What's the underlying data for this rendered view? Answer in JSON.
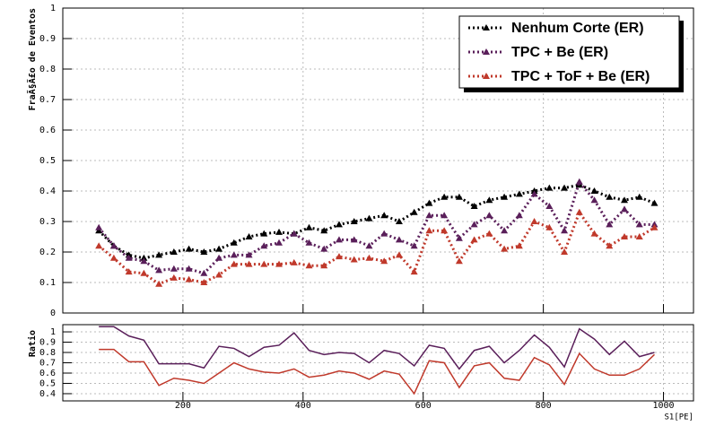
{
  "chart_data": [
    {
      "type": "line",
      "ylabel": "FraÃ§Ã£o de Eventos",
      "x": [
        60,
        85,
        110,
        135,
        160,
        185,
        210,
        235,
        260,
        285,
        310,
        335,
        360,
        385,
        410,
        435,
        460,
        485,
        510,
        535,
        560,
        585,
        610,
        635,
        660,
        685,
        710,
        735,
        760,
        785,
        810,
        835,
        860,
        885,
        910,
        935,
        960,
        985
      ],
      "series": [
        {
          "name": "Nenhum Corte (ER)",
          "color": "#000000",
          "values": [
            0.27,
            0.22,
            0.19,
            0.18,
            0.19,
            0.2,
            0.21,
            0.2,
            0.21,
            0.23,
            0.25,
            0.26,
            0.265,
            0.26,
            0.28,
            0.27,
            0.29,
            0.3,
            0.31,
            0.32,
            0.3,
            0.33,
            0.36,
            0.38,
            0.38,
            0.35,
            0.37,
            0.38,
            0.39,
            0.4,
            0.41,
            0.41,
            0.42,
            0.4,
            0.38,
            0.37,
            0.38,
            0.36
          ]
        },
        {
          "name": "TPC + Be (ER)",
          "color": "#5a1f5a",
          "values": [
            0.28,
            0.22,
            0.18,
            0.17,
            0.14,
            0.145,
            0.145,
            0.13,
            0.18,
            0.19,
            0.19,
            0.22,
            0.23,
            0.26,
            0.23,
            0.21,
            0.24,
            0.24,
            0.22,
            0.26,
            0.24,
            0.22,
            0.32,
            0.32,
            0.245,
            0.29,
            0.32,
            0.27,
            0.32,
            0.39,
            0.35,
            0.27,
            0.43,
            0.37,
            0.29,
            0.34,
            0.29,
            0.29
          ]
        },
        {
          "name": "TPC + ToF + Be (ER)",
          "color": "#c0392b",
          "values": [
            0.22,
            0.18,
            0.135,
            0.13,
            0.095,
            0.115,
            0.11,
            0.1,
            0.125,
            0.16,
            0.16,
            0.16,
            0.16,
            0.165,
            0.155,
            0.155,
            0.185,
            0.175,
            0.18,
            0.17,
            0.19,
            0.135,
            0.27,
            0.27,
            0.17,
            0.24,
            0.26,
            0.21,
            0.22,
            0.3,
            0.28,
            0.2,
            0.33,
            0.26,
            0.22,
            0.25,
            0.25,
            0.28
          ]
        }
      ],
      "xlim": [
        0,
        1050
      ],
      "ylim": [
        0,
        1
      ],
      "yticks": [
        0,
        0.1,
        0.2,
        0.3,
        0.4,
        0.5,
        0.6,
        0.7,
        0.8,
        0.9,
        1
      ],
      "grid": true
    },
    {
      "type": "line",
      "xlabel": "S1[PE]",
      "ylabel": "Ratio",
      "x": [
        60,
        85,
        110,
        135,
        160,
        185,
        210,
        235,
        260,
        285,
        310,
        335,
        360,
        385,
        410,
        435,
        460,
        485,
        510,
        535,
        560,
        585,
        610,
        635,
        660,
        685,
        710,
        735,
        760,
        785,
        810,
        835,
        860,
        885,
        910,
        935,
        960,
        985
      ],
      "series": [
        {
          "color": "#5a1f5a",
          "values": [
            1.05,
            1.05,
            0.96,
            0.92,
            0.69,
            0.69,
            0.69,
            0.65,
            0.86,
            0.84,
            0.76,
            0.85,
            0.87,
            0.99,
            0.82,
            0.78,
            0.8,
            0.79,
            0.7,
            0.82,
            0.79,
            0.67,
            0.87,
            0.84,
            0.64,
            0.82,
            0.86,
            0.7,
            0.82,
            0.97,
            0.85,
            0.66,
            1.03,
            0.93,
            0.78,
            0.91,
            0.76,
            0.8
          ]
        },
        {
          "color": "#c0392b",
          "values": [
            0.83,
            0.83,
            0.71,
            0.71,
            0.48,
            0.55,
            0.53,
            0.5,
            0.6,
            0.7,
            0.64,
            0.61,
            0.6,
            0.64,
            0.56,
            0.58,
            0.62,
            0.6,
            0.54,
            0.62,
            0.59,
            0.4,
            0.72,
            0.7,
            0.46,
            0.67,
            0.7,
            0.55,
            0.53,
            0.75,
            0.68,
            0.49,
            0.79,
            0.64,
            0.58,
            0.58,
            0.64,
            0.78
          ]
        }
      ],
      "xlim": [
        0,
        1050
      ],
      "ylim": [
        0.33,
        1.07
      ],
      "xticks": [
        200,
        400,
        600,
        800,
        1000
      ],
      "yticks": [
        0.4,
        0.5,
        0.6,
        0.7,
        0.8,
        0.9,
        1
      ],
      "grid": true
    }
  ]
}
